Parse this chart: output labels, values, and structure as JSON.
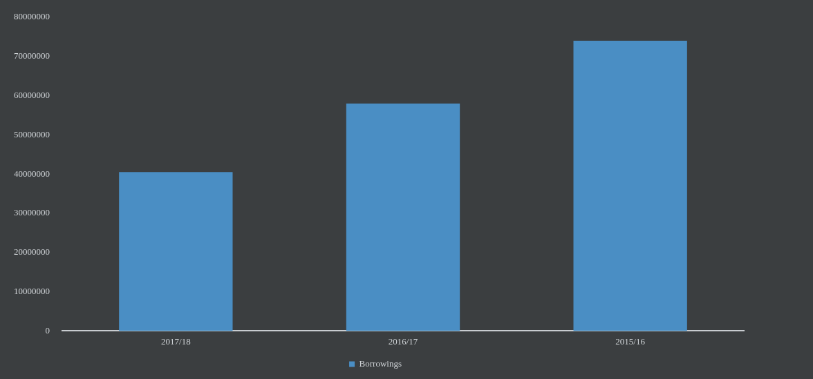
{
  "chart_data": {
    "type": "bar",
    "categories": [
      "2017/18",
      "2016/17",
      "2015/16"
    ],
    "series": [
      {
        "name": "Borrowings",
        "color": "#4a8ec4",
        "values": [
          40500000,
          58000000,
          74000000
        ]
      }
    ],
    "ylim": [
      0,
      80000000
    ],
    "yticks": [
      0,
      10000000,
      20000000,
      30000000,
      40000000,
      50000000,
      60000000,
      70000000,
      80000000
    ],
    "grid": false,
    "legend": "bottom"
  }
}
